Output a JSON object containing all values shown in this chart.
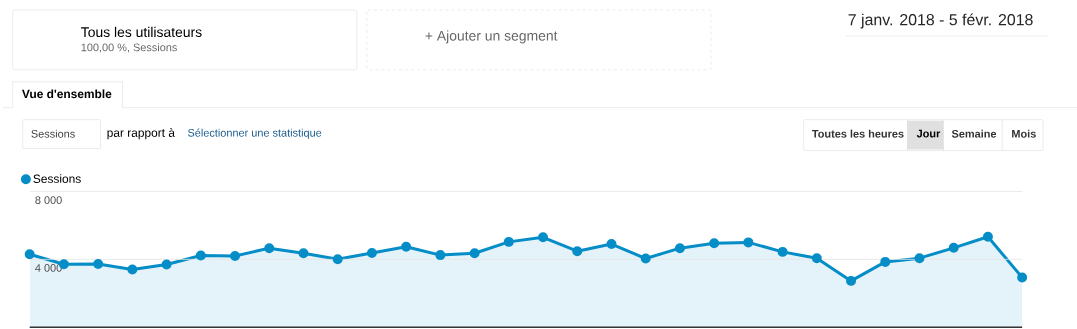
{
  "chart_data": {
    "type": "area",
    "title": "Vue d'ensemble",
    "subtitle": "7 janv. 2018 - 5 févr. 2018",
    "annotations": [
      "Tous les utilisateurs",
      "100,00 %, Sessions",
      "+ Ajouter un segment",
      "Sessions",
      "par rapport à",
      "Sélectionner une statistique",
      "Toutes les heures",
      "Jour",
      "Semaine",
      "Mois"
    ],
    "categories": [
      null,
      null,
      null,
      null,
      null,
      null,
      null,
      null,
      null,
      null,
      null,
      null,
      null,
      null,
      null,
      null,
      null,
      null,
      null,
      null,
      null,
      null,
      null,
      null,
      null,
      null,
      null,
      null,
      null,
      null
    ],
    "series": [
      {
        "name": "Sessions",
        "color": "#058dc7",
        "values": [
          4300,
          3710,
          3730,
          3400,
          3700,
          4230,
          4200,
          4660,
          4360,
          4010,
          4380,
          4740,
          4250,
          4360,
          5030,
          5300,
          4480,
          4900,
          4050,
          4660,
          4950,
          5000,
          4440,
          4070,
          2730,
          3850,
          4070,
          4680,
          5330,
          2930
        ]
      }
    ],
    "ylim": [
      0,
      8000
    ],
    "yticks": [
      {
        "value": 4000,
        "label": "4 000"
      },
      {
        "value": 8000,
        "label": "8 000"
      }
    ],
    "grid": "y",
    "legend": "top left",
    "marker": "circle"
  }
}
